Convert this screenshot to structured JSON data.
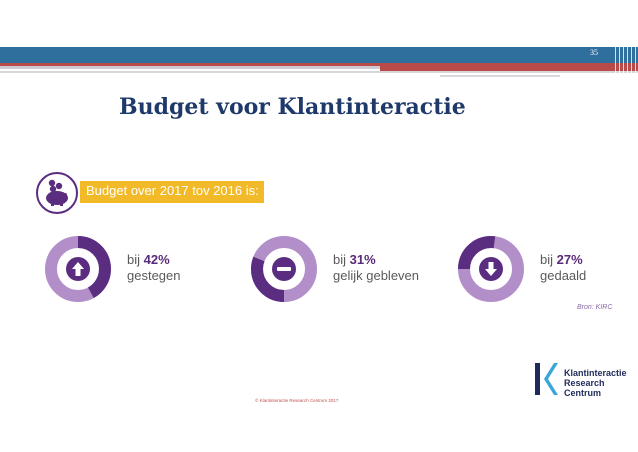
{
  "header": {
    "page_number": "35"
  },
  "slide": {
    "title": "Budget voor Klantinteractie"
  },
  "banner": {
    "text": "Budget over 2017 tov 2016 is:",
    "icon": "piggy-bank-icon"
  },
  "stats": [
    {
      "prefix": "bij ",
      "percent": "42%",
      "label": "gestegen",
      "icon": "arrow-up-icon",
      "value": 0.42
    },
    {
      "prefix": "bij ",
      "percent": "31%",
      "label": "gelijk gebleven",
      "icon": "minus-icon",
      "value": 0.31
    },
    {
      "prefix": "bij ",
      "percent": "27%",
      "label": "gedaald",
      "icon": "arrow-down-icon",
      "value": 0.27
    }
  ],
  "source": "Bron: KIRC",
  "footer": "© Klantinteractie Research Centrum 2017",
  "logo": {
    "line1": "Klantinteractie",
    "line2": "Research",
    "line3": "Centrum"
  },
  "colors": {
    "dark_purple": "#5b2d80",
    "light_purple": "#b38fc9",
    "yellow": "#f2ba28",
    "header_blue": "#2e6f9d"
  }
}
